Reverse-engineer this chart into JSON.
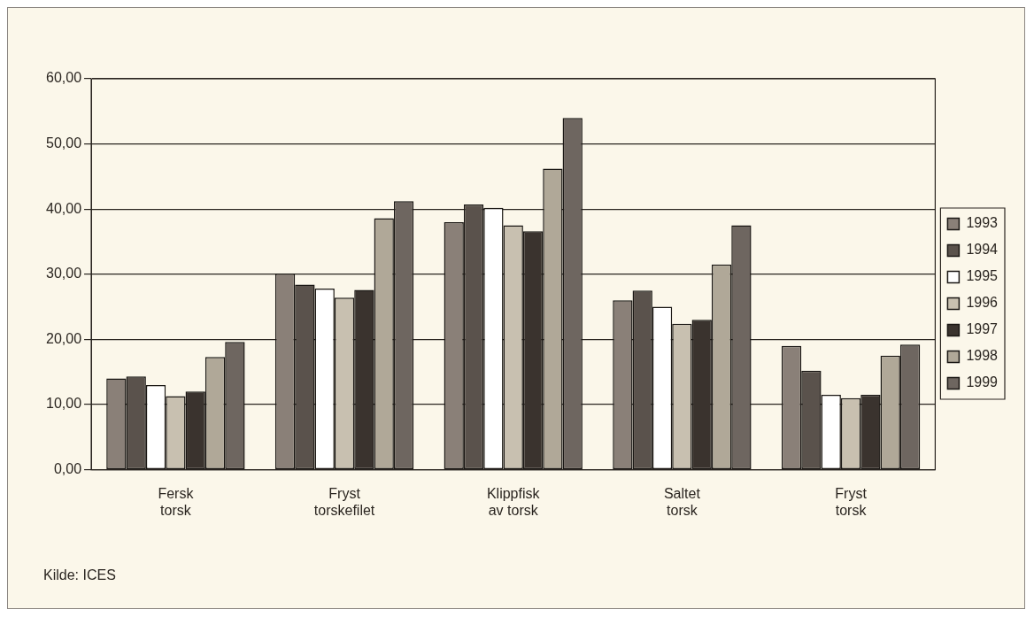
{
  "chart_data": {
    "type": "bar",
    "categories": [
      "Fersk\ntorsk",
      "Fryst\ntorskefilet",
      "Klippfisk\nav torsk",
      "Saltet\ntorsk",
      "Fryst\ntorsk"
    ],
    "series": [
      {
        "name": "1993",
        "color": "#8a8078",
        "values": [
          14.0,
          30.1,
          38.0,
          26.0,
          19.0
        ]
      },
      {
        "name": "1994",
        "color": "#5a524c",
        "values": [
          14.3,
          28.4,
          40.7,
          27.5,
          15.2
        ]
      },
      {
        "name": "1995",
        "color": "#ffffff",
        "values": [
          13.0,
          27.8,
          40.2,
          25.0,
          11.5
        ]
      },
      {
        "name": "1996",
        "color": "#c8c0b0",
        "values": [
          11.3,
          26.4,
          37.5,
          22.4,
          11.0
        ]
      },
      {
        "name": "1997",
        "color": "#3a332e",
        "values": [
          12.0,
          27.6,
          36.6,
          23.0,
          11.5
        ]
      },
      {
        "name": "1998",
        "color": "#b0a898",
        "values": [
          17.3,
          38.6,
          46.2,
          31.5,
          17.5
        ]
      },
      {
        "name": "1999",
        "color": "#6e6660",
        "values": [
          19.6,
          41.2,
          54.0,
          37.5,
          19.2
        ]
      }
    ],
    "ylim": [
      0,
      60
    ],
    "yticks": [
      {
        "value": 0,
        "label": "0,00"
      },
      {
        "value": 10,
        "label": "10,00"
      },
      {
        "value": 20,
        "label": "20,00"
      },
      {
        "value": 30,
        "label": "30,00"
      },
      {
        "value": 40,
        "label": "40,00"
      },
      {
        "value": 50,
        "label": "50,00"
      },
      {
        "value": 60,
        "label": "60,00"
      }
    ],
    "grid": "y",
    "legend": "right",
    "annotations": [
      "Kilde: ICES"
    ]
  }
}
